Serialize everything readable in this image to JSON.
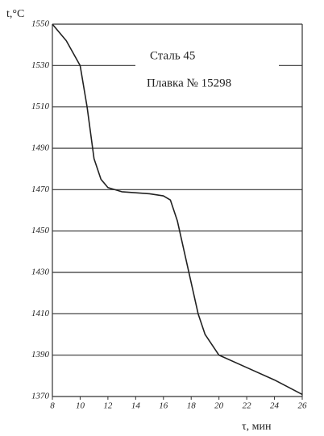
{
  "chart_data": {
    "type": "line",
    "ylabel": "t,°C",
    "xlabel": "τ, мин",
    "annotations": [
      "Сталь 45",
      "Плавка № 15298"
    ],
    "x": [
      8,
      9,
      10,
      10.5,
      11,
      11.5,
      12,
      13,
      15,
      16,
      16.5,
      17,
      17.5,
      18,
      18.5,
      19,
      20,
      22,
      24,
      26
    ],
    "values": [
      1550,
      1542,
      1530,
      1510,
      1485,
      1475,
      1471,
      1469,
      1468,
      1467,
      1465,
      1455,
      1440,
      1425,
      1410,
      1400,
      1390,
      1384,
      1378,
      1371
    ],
    "color": "#222222",
    "xlim": [
      8,
      26
    ],
    "ylim": [
      1370,
      1550
    ],
    "xticks": [
      8,
      10,
      12,
      14,
      16,
      18,
      20,
      22,
      24,
      26
    ],
    "yticks": [
      1370,
      1390,
      1410,
      1430,
      1450,
      1470,
      1490,
      1510,
      1530,
      1550
    ],
    "grid": "y"
  }
}
